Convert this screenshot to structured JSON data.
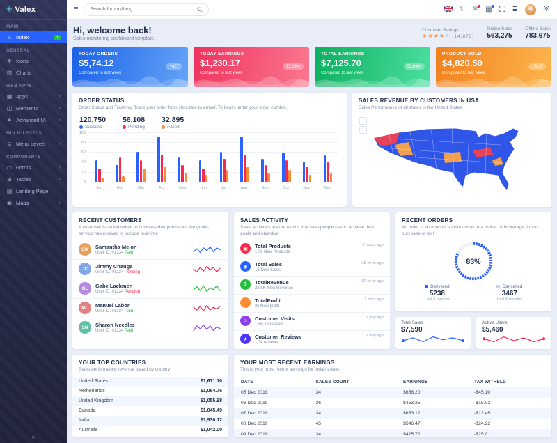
{
  "colors": {
    "primary": "#2962ff",
    "danger": "#f7284a",
    "success": "#22c03c",
    "warning": "#fb8c35",
    "purple": "#8c3feb",
    "indigo": "#4c33ff",
    "sidebar_bg": "#262a47",
    "content_bg": "#e9edf7"
  },
  "sidebar": {
    "logo_text": "Valex",
    "sections": [
      {
        "label": "MAIN",
        "items": [
          {
            "label": "Index",
            "badge": "1"
          }
        ]
      },
      {
        "label": "GENERAL",
        "items": [
          {
            "label": "Icons"
          },
          {
            "label": "Charts"
          }
        ]
      },
      {
        "label": "WEB APPS",
        "items": [
          {
            "label": "Apps"
          },
          {
            "label": "Elements"
          },
          {
            "label": "Advanced UI"
          }
        ]
      },
      {
        "label": "MULTI LEVELS",
        "items": [
          {
            "label": "Menu Levels"
          }
        ]
      },
      {
        "label": "COMPONENTS",
        "items": [
          {
            "label": "Forms"
          },
          {
            "label": "Tables"
          },
          {
            "label": "Landing Page"
          },
          {
            "label": "Maps"
          }
        ]
      }
    ]
  },
  "header": {
    "search_placeholder": "Search for anything..."
  },
  "welcome": {
    "title": "Hi, welcome back!",
    "subtitle": "Sales monitoring dashboard template.",
    "customer_ratings_label": "Customer Ratings",
    "stars_full": "★★★★",
    "stars_dim": "★",
    "ratings_count": "(14,873)",
    "online_sales_label": "Online Sales",
    "online_sales_value": "563,275",
    "offline_sales_label": "Offline Sales",
    "offline_sales_value": "783,675"
  },
  "stat_cards": [
    {
      "title": "TODAY ORDERS",
      "value": "$5,74.12",
      "compare": "Compared to last week",
      "badge": "+427"
    },
    {
      "title": "TODAY EARNINGS",
      "value": "$1,230.17",
      "compare": "Compared to last week",
      "badge": "23.09%"
    },
    {
      "title": "TOTAL EARNINGS",
      "value": "$7,125.70",
      "compare": "Compared to last week",
      "badge": "52.09%"
    },
    {
      "title": "PRODUCT SOLD",
      "value": "$4,820.50",
      "compare": "Compared to last week",
      "badge": "152.3"
    }
  ],
  "order_status": {
    "title": "ORDER STATUS",
    "description": "Order Status and Tracking. Track your order from ship date to arrival. To begin, enter your order number.",
    "stats": [
      {
        "value": "120,750",
        "label": "Success"
      },
      {
        "value": "56,108",
        "label": "Pending"
      },
      {
        "value": "32,895",
        "label": "Failed"
      }
    ],
    "chart": {
      "type": "bar",
      "categories": [
        "Jan",
        "Feb",
        "Mar",
        "Apr",
        "May",
        "Jun",
        "Jul",
        "Aug",
        "Sep",
        "Oct",
        "Nov",
        "Dec"
      ],
      "series": [
        {
          "name": "Success",
          "color": "#2962ff",
          "values": [
            45,
            35,
            62,
            92,
            50,
            45,
            62,
            92,
            48,
            60,
            42,
            55
          ]
        },
        {
          "name": "Pending",
          "color": "#f7284a",
          "values": [
            28,
            50,
            45,
            56,
            35,
            28,
            48,
            56,
            35,
            45,
            30,
            40
          ]
        },
        {
          "name": "Failed",
          "color": "#fb8c35",
          "values": [
            10,
            12,
            28,
            30,
            20,
            15,
            25,
            30,
            18,
            25,
            15,
            20
          ]
        }
      ],
      "ylim": [
        0,
        100
      ],
      "yticks": [
        0,
        20,
        40,
        60,
        80,
        100
      ]
    }
  },
  "usa_map": {
    "title": "SALES REVENUE BY CUSTOMERS IN USA",
    "description": "Sales Performance of all states in the United States",
    "zoom_in": "+",
    "zoom_out": "−"
  },
  "recent_customers": {
    "title": "RECENT CUSTOMERS",
    "description": "A customer is an individual or business that purchases the goods service has evolved to include real-time",
    "list": [
      {
        "name": "Samantha Melon",
        "user_id": "User ID: #1234",
        "status": "Paid",
        "spark_color": "#2962ff",
        "spark": [
          4,
          7,
          3,
          8,
          5,
          9,
          4,
          8,
          6
        ]
      },
      {
        "name": "Jimmy Changa",
        "user_id": "User ID: #1234",
        "status": "Pending",
        "spark_color": "#f7284a",
        "spark": [
          6,
          3,
          8,
          4,
          9,
          5,
          8,
          3,
          7
        ]
      },
      {
        "name": "Gabe Lackmen",
        "user_id": "User ID: #1234",
        "status": "Pending",
        "spark_color": "#22c03c",
        "spark": [
          5,
          8,
          4,
          9,
          3,
          7,
          5,
          9,
          4
        ]
      },
      {
        "name": "Manuel Labor",
        "user_id": "User ID: #1234",
        "status": "Paid",
        "spark_color": "#f7284a",
        "spark": [
          7,
          4,
          8,
          3,
          9,
          4,
          7,
          5,
          8
        ]
      },
      {
        "name": "Sharon Needles",
        "user_id": "User ID: #1234",
        "status": "Paid",
        "spark_color": "#8c3feb",
        "spark": [
          3,
          8,
          5,
          9,
          4,
          8,
          3,
          7,
          5
        ]
      }
    ]
  },
  "sales_activity": {
    "title": "SALES ACTIVITY",
    "description": "Sales activities are the tactics that salespeople use to achieve their goals and objective",
    "list": [
      {
        "name": "Total Products",
        "detail": "1.3k New Products",
        "time": "2 hours ago",
        "color": "#f7284a",
        "icon": "box-icon",
        "glyph": "▣"
      },
      {
        "name": "Total Sales",
        "detail": "16 New Sales",
        "time": "35 mins ago",
        "color": "#2962ff",
        "icon": "cart-icon",
        "glyph": "◉"
      },
      {
        "name": "TotalRevenue",
        "detail": "23.5K New Revenue",
        "time": "50 mins ago",
        "color": "#22c03c",
        "icon": "dollar-icon",
        "glyph": "$"
      },
      {
        "name": "TotalProfit",
        "detail": "3k New profit",
        "time": "1 hour ago",
        "color": "#fb8c35",
        "icon": "chart-icon",
        "glyph": "◔"
      },
      {
        "name": "Customer Visits",
        "detail": "15% increased",
        "time": "1 day ago",
        "color": "#8c3feb",
        "icon": "users-icon",
        "glyph": "☺"
      },
      {
        "name": "Customer Reviews",
        "detail": "1.3k reviews",
        "time": "1 day ago",
        "color": "#4c33ff",
        "icon": "star-icon",
        "glyph": "★"
      }
    ]
  },
  "recent_orders": {
    "title": "RECENT ORDERS",
    "description": "An order is an investor's instructions to a broker or brokerage firm to purchase or sell",
    "gauge_percent": "83%",
    "gauge_value": 83,
    "delivered_label": "Delivered",
    "delivered_value": "5238",
    "delivered_sub": "Last 6 months",
    "cancelled_label": "Cancelled",
    "cancelled_value": "3467",
    "cancelled_sub": "Last 6 months"
  },
  "mini_stats": [
    {
      "label": "Total Sales",
      "value": "$7,590",
      "color": "#2962ff",
      "spark": [
        5,
        8,
        4,
        9,
        6,
        8,
        5
      ]
    },
    {
      "label": "Active Users",
      "value": "$5,460",
      "color": "#f7284a",
      "spark": [
        6,
        3,
        8,
        4,
        7,
        3,
        6
      ]
    }
  ],
  "top_countries": {
    "title": "YOUR TOP COUNTRIES",
    "description": "Sales performance revenue based by country",
    "list": [
      {
        "country": "United States",
        "value": "$1,671.10"
      },
      {
        "country": "Netherlands",
        "value": "$1,064.75"
      },
      {
        "country": "United Kingdom",
        "value": "$1,055.98"
      },
      {
        "country": "Canada",
        "value": "$1,045.49"
      },
      {
        "country": "India",
        "value": "$1,930.12"
      },
      {
        "country": "Australia",
        "value": "$1,042.00"
      }
    ]
  },
  "recent_earnings": {
    "title": "YOUR MOST RECENT EARNINGS",
    "description": "This is your most recent earnings for today's date.",
    "columns": [
      "DATE",
      "SALES COUNT",
      "EARNINGS",
      "TAX WITHELD"
    ],
    "rows": [
      {
        "date": "05 Dec 2019",
        "sales_count": "34",
        "earnings": "$658.20",
        "tax": "-$45.10",
        "tax_negative": false
      },
      {
        "date": "06 Dec 2019",
        "sales_count": "26",
        "earnings": "$453.25",
        "tax": "-$15.02",
        "tax_negative": true
      },
      {
        "date": "07 Dec 2019",
        "sales_count": "34",
        "earnings": "$653.12",
        "tax": "-$13.45",
        "tax_negative": false
      },
      {
        "date": "08 Dec 2019",
        "sales_count": "45",
        "earnings": "$546.47",
        "tax": "-$24.22",
        "tax_negative": true
      },
      {
        "date": "09 Dec 2019",
        "sales_count": "34",
        "earnings": "$425.72",
        "tax": "-$25.01",
        "tax_negative": false
      }
    ]
  }
}
